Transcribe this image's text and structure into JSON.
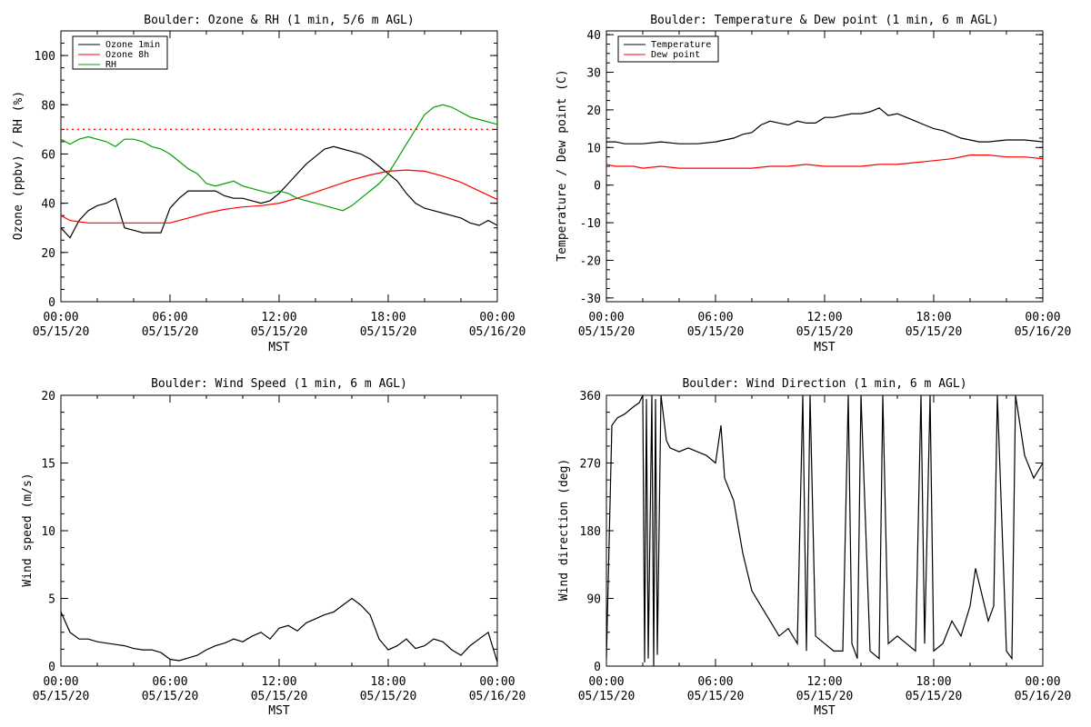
{
  "chart_data": [
    {
      "type": "line",
      "title": "Boulder: Ozone & RH (1 min, 5/6 m AGL)",
      "ylabel": "Ozone (ppbv) / RH (%)",
      "xlabel": "MST",
      "ylim": [
        0,
        110
      ],
      "yticks": [
        0,
        20,
        40,
        60,
        80,
        100
      ],
      "xticks": [
        [
          "00:00",
          "05/15/20"
        ],
        [
          "06:00",
          "05/15/20"
        ],
        [
          "12:00",
          "05/15/20"
        ],
        [
          "18:00",
          "05/15/20"
        ],
        [
          "00:00",
          "05/16/20"
        ]
      ],
      "legend": "top-left",
      "reference_line": {
        "y": 70,
        "color": "#ff0000",
        "style": "dotted"
      },
      "series": [
        {
          "name": "Ozone 1min",
          "color": "#000000",
          "x": [
            0,
            0.5,
            1,
            1.5,
            2,
            2.5,
            3,
            3.5,
            4,
            4.5,
            5,
            5.5,
            6,
            6.5,
            7,
            7.5,
            8,
            8.5,
            9,
            9.5,
            10,
            10.5,
            11,
            11.5,
            12,
            12.5,
            13,
            13.5,
            14,
            14.5,
            15,
            15.5,
            16,
            16.5,
            17,
            17.5,
            18,
            18.5,
            19,
            19.5,
            20,
            20.5,
            21,
            21.5,
            22,
            22.5,
            23,
            23.5,
            24
          ],
          "y": [
            30,
            26,
            33,
            37,
            39,
            40,
            42,
            30,
            29,
            28,
            28,
            28,
            38,
            42,
            45,
            45,
            45,
            45,
            43,
            42,
            42,
            41,
            40,
            41,
            44,
            48,
            52,
            56,
            59,
            62,
            63,
            62,
            61,
            60,
            58,
            55,
            52,
            49,
            44,
            40,
            38,
            37,
            36,
            35,
            34,
            32,
            31,
            33,
            31
          ]
        },
        {
          "name": "Ozone 8h",
          "color": "#ff0000",
          "x": [
            0,
            0.5,
            1,
            1.5,
            2,
            3,
            4,
            5,
            6,
            7,
            8,
            9,
            10,
            11,
            12,
            13,
            14,
            15,
            16,
            17,
            18,
            19,
            20,
            21,
            22,
            23,
            24
          ],
          "y": [
            35,
            33,
            32.5,
            32,
            32,
            32,
            32,
            32,
            32,
            34,
            36,
            37.5,
            38.5,
            39,
            40,
            42,
            44.5,
            47,
            49.5,
            51.5,
            53,
            53.5,
            53,
            51,
            48.5,
            45,
            41.5
          ]
        },
        {
          "name": "RH",
          "color": "#00a000",
          "x": [
            0,
            0.5,
            1,
            1.5,
            2,
            2.5,
            3,
            3.5,
            4,
            4.5,
            5,
            5.5,
            6,
            6.5,
            7,
            7.5,
            8,
            8.5,
            9,
            9.5,
            10,
            10.5,
            11,
            11.5,
            12,
            12.5,
            13,
            13.5,
            14,
            14.5,
            15,
            15.5,
            16,
            16.5,
            17,
            17.5,
            18,
            18.5,
            19,
            19.5,
            20,
            20.5,
            21,
            21.5,
            22,
            22.5,
            23,
            23.5,
            24
          ],
          "y": [
            66,
            64,
            66,
            67,
            66,
            65,
            63,
            66,
            66,
            65,
            63,
            62,
            60,
            57,
            54,
            52,
            48,
            47,
            48,
            49,
            47,
            46,
            45,
            44,
            45,
            44,
            42,
            41,
            40,
            39,
            38,
            37,
            39,
            42,
            45,
            48,
            52,
            58,
            64,
            70,
            76,
            79,
            80,
            79,
            77,
            75,
            74,
            73,
            72
          ]
        }
      ]
    },
    {
      "type": "line",
      "title": "Boulder: Temperature & Dew point (1 min, 6 m AGL)",
      "ylabel": "Temperature / Dew point (C)",
      "xlabel": "MST",
      "ylim": [
        -31,
        41
      ],
      "yticks": [
        -30,
        -20,
        -10,
        0,
        10,
        20,
        30,
        40
      ],
      "xticks": [
        [
          "00:00",
          "05/15/20"
        ],
        [
          "06:00",
          "05/15/20"
        ],
        [
          "12:00",
          "05/15/20"
        ],
        [
          "18:00",
          "05/15/20"
        ],
        [
          "00:00",
          "05/16/20"
        ]
      ],
      "legend": "top-left",
      "series": [
        {
          "name": "Temperature",
          "color": "#000000",
          "x": [
            0,
            0.5,
            1,
            1.5,
            2,
            3,
            4,
            5,
            6,
            6.5,
            7,
            7.5,
            8,
            8.5,
            9,
            9.5,
            10,
            10.5,
            11,
            11.5,
            12,
            12.5,
            13,
            13.5,
            14,
            14.5,
            15,
            15.5,
            16,
            16.5,
            17,
            17.5,
            18,
            18.5,
            19,
            19.5,
            20,
            20.5,
            21,
            22,
            23,
            24
          ],
          "y": [
            11.5,
            11.5,
            11,
            11,
            11,
            11.5,
            11,
            11,
            11.5,
            12,
            12.5,
            13.5,
            14,
            16,
            17,
            16.5,
            16,
            17,
            16.5,
            16.5,
            18,
            18,
            18.5,
            19,
            19,
            19.5,
            20.5,
            18.5,
            19,
            18,
            17,
            16,
            15,
            14.5,
            13.5,
            12.5,
            12,
            11.5,
            11.5,
            12,
            12,
            11.5
          ]
        },
        {
          "name": "Dew point",
          "color": "#ff0000",
          "x": [
            0,
            0.5,
            1,
            1.5,
            2,
            3,
            4,
            5,
            6,
            7,
            8,
            9,
            10,
            11,
            12,
            13,
            14,
            15,
            16,
            17,
            18,
            19,
            20,
            21,
            22,
            23,
            24
          ],
          "y": [
            5.5,
            5,
            5,
            5,
            4.5,
            5,
            4.5,
            4.5,
            4.5,
            4.5,
            4.5,
            5,
            5,
            5.5,
            5,
            5,
            5,
            5.5,
            5.5,
            6,
            6.5,
            7,
            8,
            8,
            7.5,
            7.5,
            7
          ]
        }
      ]
    },
    {
      "type": "line",
      "title": "Boulder: Wind Speed (1 min, 6 m AGL)",
      "ylabel": "Wind speed (m/s)",
      "xlabel": "MST",
      "ylim": [
        0,
        20
      ],
      "yticks": [
        0,
        5,
        10,
        15,
        20
      ],
      "xticks": [
        [
          "00:00",
          "05/15/20"
        ],
        [
          "06:00",
          "05/15/20"
        ],
        [
          "12:00",
          "05/15/20"
        ],
        [
          "18:00",
          "05/15/20"
        ],
        [
          "00:00",
          "05/16/20"
        ]
      ],
      "series": [
        {
          "name": "",
          "color": "#000000",
          "x": [
            0,
            0.5,
            1,
            1.5,
            2,
            2.5,
            3,
            3.5,
            4,
            4.5,
            5,
            5.5,
            6,
            6.5,
            7,
            7.5,
            8,
            8.5,
            9,
            9.5,
            10,
            10.5,
            11,
            11.5,
            12,
            12.5,
            13,
            13.5,
            14,
            14.5,
            15,
            15.5,
            16,
            16.5,
            17,
            17.5,
            18,
            18.5,
            19,
            19.5,
            20,
            20.5,
            21,
            21.5,
            22,
            22.5,
            23,
            23.5,
            24
          ],
          "y": [
            4,
            2.5,
            2,
            2,
            1.8,
            1.7,
            1.6,
            1.5,
            1.3,
            1.2,
            1.2,
            1,
            0.5,
            0.4,
            0.6,
            0.8,
            1.2,
            1.5,
            1.7,
            2,
            1.8,
            2.2,
            2.5,
            2,
            2.8,
            3,
            2.6,
            3.2,
            3.5,
            3.8,
            4,
            4.5,
            5,
            4.5,
            3.8,
            2,
            1.2,
            1.5,
            2,
            1.3,
            1.5,
            2,
            1.8,
            1.2,
            0.8,
            1.5,
            2,
            2.5,
            0.3
          ]
        }
      ]
    },
    {
      "type": "line",
      "title": "Boulder: Wind Direction (1 min, 6 m AGL)",
      "ylabel": "Wind direction (deg)",
      "xlabel": "MST",
      "ylim": [
        0,
        360
      ],
      "yticks": [
        0,
        90,
        180,
        270,
        360
      ],
      "xticks": [
        [
          "00:00",
          "05/15/20"
        ],
        [
          "06:00",
          "05/15/20"
        ],
        [
          "12:00",
          "05/15/20"
        ],
        [
          "18:00",
          "05/15/20"
        ],
        [
          "00:00",
          "05/16/20"
        ]
      ],
      "series": [
        {
          "name": "",
          "color": "#000000",
          "x": [
            0,
            0.3,
            0.6,
            1,
            1.5,
            1.8,
            2,
            2.1,
            2.2,
            2.3,
            2.5,
            2.6,
            2.7,
            2.8,
            3,
            3.3,
            3.5,
            4,
            4.5,
            5,
            5.5,
            6,
            6.3,
            6.5,
            7,
            7.5,
            8,
            8.5,
            9,
            9.5,
            10,
            10.5,
            10.8,
            11,
            11.2,
            11.5,
            12,
            12.5,
            13,
            13.3,
            13.5,
            13.8,
            14,
            14.5,
            15,
            15.2,
            15.5,
            16,
            16.5,
            17,
            17.3,
            17.5,
            17.8,
            18,
            18.5,
            19,
            19.5,
            20,
            20.3,
            20.6,
            21,
            21.3,
            21.5,
            22,
            22.3,
            22.5,
            23,
            23.5,
            24
          ],
          "y": [
            10,
            320,
            330,
            335,
            345,
            350,
            360,
            5,
            355,
            10,
            360,
            0,
            355,
            15,
            360,
            300,
            290,
            285,
            290,
            285,
            280,
            270,
            320,
            250,
            220,
            150,
            100,
            80,
            60,
            40,
            50,
            30,
            360,
            20,
            360,
            40,
            30,
            20,
            20,
            360,
            30,
            10,
            360,
            20,
            10,
            360,
            30,
            40,
            30,
            20,
            360,
            30,
            360,
            20,
            30,
            60,
            40,
            80,
            130,
            100,
            60,
            80,
            360,
            20,
            10,
            360,
            280,
            250,
            270
          ]
        }
      ]
    }
  ]
}
